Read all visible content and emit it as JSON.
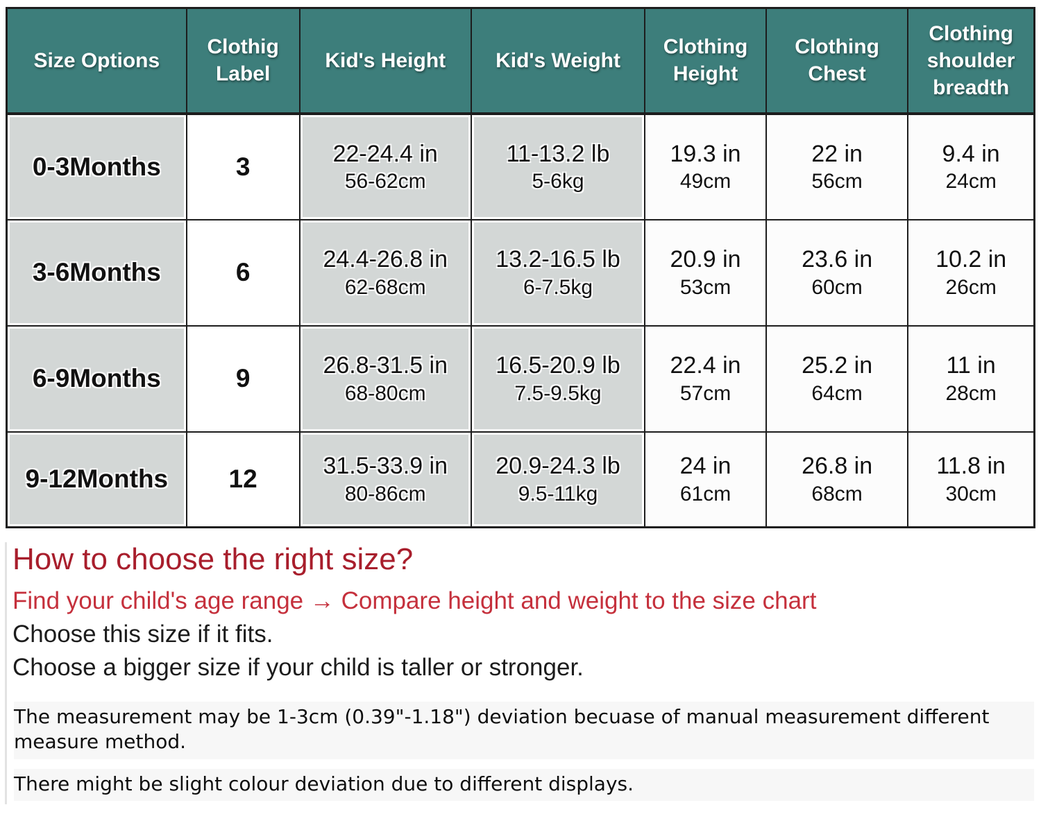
{
  "colors": {
    "header_bg": "#3d7e7b",
    "cell_gray": "#d3d7d6",
    "border": "#1d1d1d",
    "title_red": "#a81e2c",
    "line_red": "#c5303c"
  },
  "table": {
    "columns": [
      {
        "label": "Size Options"
      },
      {
        "label": "Clothig Label"
      },
      {
        "label": "Kid's Height"
      },
      {
        "label": "Kid's Weight"
      },
      {
        "label": "Clothing Height"
      },
      {
        "label": "Clothing Chest"
      },
      {
        "label": "Clothing shoulder breadth"
      }
    ],
    "rows": [
      {
        "size": "0-3Months",
        "label": "3",
        "kid_height_in": "22-24.4 in",
        "kid_height_cm": "56-62cm",
        "kid_weight_lb": "11-13.2 lb",
        "kid_weight_kg": "5-6kg",
        "clothing_height_in": "19.3 in",
        "clothing_height_cm": "49cm",
        "clothing_chest_in": "22 in",
        "clothing_chest_cm": "56cm",
        "shoulder_in": "9.4 in",
        "shoulder_cm": "24cm"
      },
      {
        "size": "3-6Months",
        "label": "6",
        "kid_height_in": "24.4-26.8 in",
        "kid_height_cm": "62-68cm",
        "kid_weight_lb": "13.2-16.5 lb",
        "kid_weight_kg": "6-7.5kg",
        "clothing_height_in": "20.9 in",
        "clothing_height_cm": "53cm",
        "clothing_chest_in": "23.6 in",
        "clothing_chest_cm": "60cm",
        "shoulder_in": "10.2 in",
        "shoulder_cm": "26cm"
      },
      {
        "size": "6-9Months",
        "label": "9",
        "kid_height_in": "26.8-31.5 in",
        "kid_height_cm": "68-80cm",
        "kid_weight_lb": "16.5-20.9 lb",
        "kid_weight_kg": "7.5-9.5kg",
        "clothing_height_in": "22.4 in",
        "clothing_height_cm": "57cm",
        "clothing_chest_in": "25.2 in",
        "clothing_chest_cm": "64cm",
        "shoulder_in": "11 in",
        "shoulder_cm": "28cm"
      },
      {
        "size": "9-12Months",
        "label": "12",
        "kid_height_in": "31.5-33.9 in",
        "kid_height_cm": "80-86cm",
        "kid_weight_lb": "20.9-24.3 lb",
        "kid_weight_kg": "9.5-11kg",
        "clothing_height_in": "24 in",
        "clothing_height_cm": "61cm",
        "clothing_chest_in": "26.8 in",
        "clothing_chest_cm": "68cm",
        "shoulder_in": "11.8 in",
        "shoulder_cm": "30cm"
      }
    ]
  },
  "guide": {
    "title": "How to choose the right size?",
    "line1": "Find your child's age range → Compare height and weight to the size chart",
    "line2": "Choose this size if it fits.",
    "line3": "Choose a bigger size if your child is taller or stronger."
  },
  "notes": {
    "line1": "The measurement may be 1-3cm (0.39\"-1.18\") deviation becuase of manual measurement different measure method.",
    "line2": "There might be slight colour deviation due to different displays."
  }
}
